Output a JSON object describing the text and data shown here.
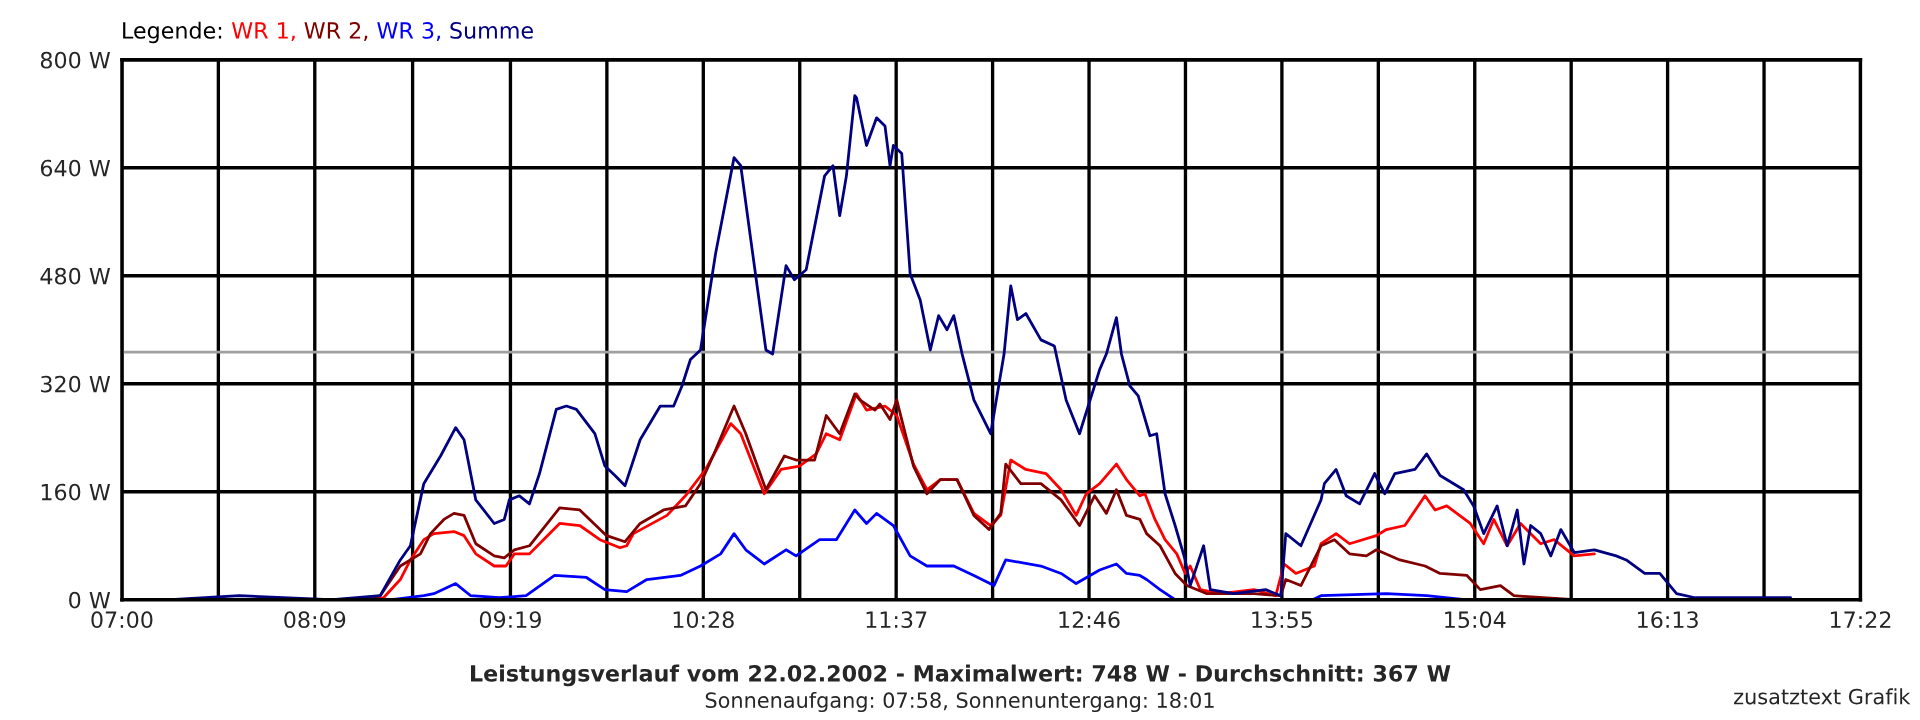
{
  "chart_data": {
    "type": "line",
    "title": "Leistungsverlauf vom 22.02.2002 - Maximalwert: 748 W - Durchschnitt: 367 W",
    "subtitle": "Sonnenaufgang: 07:58, Sonnenuntergang: 18:01",
    "legend_title": "Legende:",
    "annotations": [
      "zusatztext Grafik"
    ],
    "xlim": [
      7,
      17.3667
    ],
    "ylim": [
      0,
      800
    ],
    "xticks": [
      {
        "value": 7,
        "label": "07:00"
      },
      {
        "value": 7.575,
        "label": null
      },
      {
        "value": 8.15,
        "label": "08:09"
      },
      {
        "value": 8.7333,
        "label": null
      },
      {
        "value": 9.3167,
        "label": "09:19"
      },
      {
        "value": 9.8917,
        "label": null
      },
      {
        "value": 10.4667,
        "label": "10:28"
      },
      {
        "value": 11.0417,
        "label": null
      },
      {
        "value": 11.6167,
        "label": "11:37"
      },
      {
        "value": 12.1917,
        "label": null
      },
      {
        "value": 12.7667,
        "label": "12:46"
      },
      {
        "value": 13.3417,
        "label": null
      },
      {
        "value": 13.9167,
        "label": "13:55"
      },
      {
        "value": 14.4917,
        "label": null
      },
      {
        "value": 15.0667,
        "label": "15:04"
      },
      {
        "value": 15.6417,
        "label": null
      },
      {
        "value": 16.2167,
        "label": "16:13"
      },
      {
        "value": 16.7917,
        "label": null
      },
      {
        "value": 17.3667,
        "label": "17:22"
      }
    ],
    "yticks": [
      {
        "value": 0,
        "label": "0 W"
      },
      {
        "value": 160,
        "label": "160 W"
      },
      {
        "value": 320,
        "label": "320 W"
      },
      {
        "value": 480,
        "label": "480 W"
      },
      {
        "value": 640,
        "label": "640 W"
      },
      {
        "value": 800,
        "label": "800 W"
      }
    ],
    "grid": true,
    "legend": "top left",
    "marker": "none",
    "line_style": "solid",
    "ref_lines": [
      {
        "axis": "y",
        "value": 367,
        "color": "#a0a0a0"
      }
    ],
    "series": [
      {
        "name": "WR 1,",
        "color": "#ff0000",
        "x": [
          8.45,
          8.56,
          8.66,
          8.72,
          8.8,
          8.86,
          8.98,
          9.04,
          9.11,
          9.22,
          9.29,
          9.34,
          9.43,
          9.49,
          9.61,
          9.73,
          9.85,
          9.97,
          10.01,
          10.05,
          10.25,
          10.36,
          10.48,
          10.63,
          10.69,
          10.83,
          10.93,
          11.04,
          11.14,
          11.2,
          11.28,
          11.38,
          11.44,
          11.55,
          11.62,
          11.72,
          11.8,
          11.88,
          11.98,
          12.08,
          12.18,
          12.24,
          12.3,
          12.39,
          12.51,
          12.6,
          12.69,
          12.75,
          12.83,
          12.93,
          12.99,
          13.07,
          13.1,
          13.16,
          13.22,
          13.29,
          13.34,
          13.37,
          13.43,
          13.55,
          13.75,
          13.88,
          13.93,
          14.0,
          14.11,
          14.15,
          14.24,
          14.32,
          14.48,
          14.54,
          14.65,
          14.77,
          14.83,
          14.9,
          15.04,
          15.12,
          15.18,
          15.26,
          15.34,
          15.46,
          15.54,
          15.66,
          15.78
        ],
        "values": [
          0,
          3,
          30,
          59,
          89,
          98,
          101,
          95,
          68,
          50,
          50,
          68,
          68,
          83,
          113,
          110,
          89,
          77,
          80,
          98,
          125,
          154,
          193,
          261,
          246,
          157,
          193,
          198,
          216,
          246,
          237,
          305,
          281,
          287,
          273,
          201,
          163,
          178,
          178,
          128,
          110,
          125,
          207,
          193,
          187,
          163,
          125,
          157,
          172,
          201,
          178,
          154,
          157,
          119,
          89,
          68,
          39,
          50,
          15,
          9,
          15,
          6,
          53,
          39,
          50,
          83,
          98,
          83,
          95,
          104,
          110,
          154,
          133,
          139,
          113,
          83,
          119,
          80,
          113,
          83,
          89,
          65,
          68
        ]
      },
      {
        "name": "WR 2,",
        "color": "#800000",
        "x": [
          8.45,
          8.54,
          8.66,
          8.78,
          8.84,
          8.92,
          8.98,
          9.04,
          9.11,
          9.22,
          9.28,
          9.34,
          9.43,
          9.61,
          9.73,
          9.89,
          10.0,
          10.09,
          10.23,
          10.36,
          10.45,
          10.53,
          10.65,
          10.72,
          10.84,
          10.95,
          11.02,
          11.13,
          11.2,
          11.28,
          11.37,
          11.4,
          11.49,
          11.52,
          11.58,
          11.62,
          11.72,
          11.8,
          11.88,
          11.98,
          12.08,
          12.17,
          12.24,
          12.27,
          12.36,
          12.48,
          12.6,
          12.71,
          12.8,
          12.87,
          12.93,
          12.99,
          13.07,
          13.11,
          13.19,
          13.28,
          13.35,
          13.47,
          13.75,
          13.91,
          13.94,
          14.03,
          14.15,
          14.23,
          14.32,
          14.42,
          14.48,
          14.62,
          14.77,
          14.86,
          15.02,
          15.1,
          15.22,
          15.3,
          15.66,
          15.88
        ],
        "values": [
          0,
          6,
          50,
          68,
          98,
          119,
          128,
          125,
          83,
          65,
          62,
          74,
          80,
          136,
          133,
          95,
          86,
          113,
          133,
          139,
          172,
          216,
          287,
          246,
          163,
          213,
          207,
          207,
          273,
          246,
          305,
          296,
          281,
          290,
          267,
          296,
          198,
          157,
          178,
          178,
          125,
          104,
          128,
          201,
          172,
          172,
          148,
          110,
          154,
          128,
          163,
          125,
          119,
          98,
          80,
          39,
          21,
          9,
          9,
          6,
          30,
          21,
          80,
          89,
          68,
          65,
          74,
          59,
          50,
          39,
          36,
          15,
          21,
          6,
          0,
          0
        ]
      },
      {
        "name": "WR 3,",
        "color": "#0000ff",
        "x": [
          8.6,
          8.8,
          8.86,
          8.99,
          9.08,
          9.25,
          9.41,
          9.58,
          9.77,
          9.88,
          10.01,
          10.13,
          10.33,
          10.45,
          10.57,
          10.65,
          10.72,
          10.83,
          10.96,
          11.02,
          11.16,
          11.26,
          11.37,
          11.44,
          11.5,
          11.6,
          11.7,
          11.8,
          11.96,
          12.08,
          12.2,
          12.27,
          12.48,
          12.6,
          12.69,
          12.83,
          12.93,
          12.99,
          13.07,
          13.11,
          13.19,
          13.28,
          14.1,
          14.15,
          14.54,
          14.78,
          15.02
        ],
        "values": [
          0,
          6,
          9,
          24,
          6,
          3,
          6,
          36,
          33,
          15,
          12,
          30,
          36,
          50,
          68,
          98,
          74,
          53,
          74,
          65,
          89,
          89,
          133,
          113,
          128,
          110,
          65,
          50,
          50,
          36,
          21,
          59,
          50,
          39,
          24,
          44,
          53,
          39,
          36,
          30,
          15,
          0,
          0,
          6,
          9,
          6,
          0
        ]
      },
      {
        "name": "Summe",
        "color": "#000080",
        "x": [
          7.29,
          7.7,
          8.24,
          8.54,
          8.66,
          8.72,
          8.8,
          8.9,
          8.99,
          9.04,
          9.11,
          9.22,
          9.28,
          9.31,
          9.37,
          9.43,
          9.49,
          9.59,
          9.65,
          9.71,
          9.82,
          9.88,
          9.94,
          10.0,
          10.09,
          10.21,
          10.29,
          10.34,
          10.39,
          10.45,
          10.54,
          10.65,
          10.69,
          10.75,
          10.84,
          10.88,
          10.96,
          11.01,
          11.08,
          11.19,
          11.24,
          11.28,
          11.32,
          11.37,
          11.38,
          11.44,
          11.5,
          11.55,
          11.58,
          11.6,
          11.65,
          11.7,
          11.76,
          11.82,
          11.87,
          11.92,
          11.96,
          12.01,
          12.08,
          12.18,
          12.26,
          12.3,
          12.34,
          12.39,
          12.48,
          12.56,
          12.63,
          12.71,
          12.83,
          12.87,
          12.93,
          12.96,
          13.01,
          13.06,
          13.13,
          13.17,
          13.22,
          13.28,
          13.34,
          13.37,
          13.45,
          13.49,
          13.63,
          13.82,
          13.91,
          13.94,
          14.03,
          14.15,
          14.17,
          14.24,
          14.3,
          14.38,
          14.47,
          14.53,
          14.59,
          14.71,
          14.78,
          14.86,
          15.0,
          15.06,
          15.12,
          15.2,
          15.26,
          15.32,
          15.36,
          15.4,
          15.46,
          15.52,
          15.58,
          15.66,
          15.78,
          15.91,
          15.97,
          16.08,
          16.17,
          16.27,
          16.38,
          16.95
        ],
        "values": [
          0,
          6,
          0,
          6,
          59,
          80,
          172,
          213,
          255,
          237,
          148,
          113,
          119,
          148,
          154,
          142,
          187,
          282,
          287,
          282,
          246,
          198,
          184,
          169,
          237,
          287,
          287,
          317,
          356,
          370,
          513,
          655,
          643,
          533,
          370,
          364,
          495,
          474,
          489,
          628,
          643,
          569,
          628,
          747,
          744,
          673,
          714,
          702,
          643,
          673,
          661,
          483,
          444,
          370,
          421,
          400,
          421,
          364,
          296,
          246,
          364,
          465,
          415,
          424,
          385,
          376,
          296,
          246,
          341,
          364,
          418,
          364,
          317,
          302,
          243,
          246,
          157,
          110,
          59,
          21,
          80,
          15,
          9,
          15,
          6,
          98,
          80,
          148,
          172,
          193,
          154,
          142,
          187,
          157,
          187,
          193,
          216,
          184,
          163,
          139,
          98,
          139,
          80,
          133,
          53,
          110,
          98,
          65,
          104,
          70,
          74,
          65,
          59,
          39,
          39,
          9,
          3,
          3
        ]
      }
    ]
  }
}
